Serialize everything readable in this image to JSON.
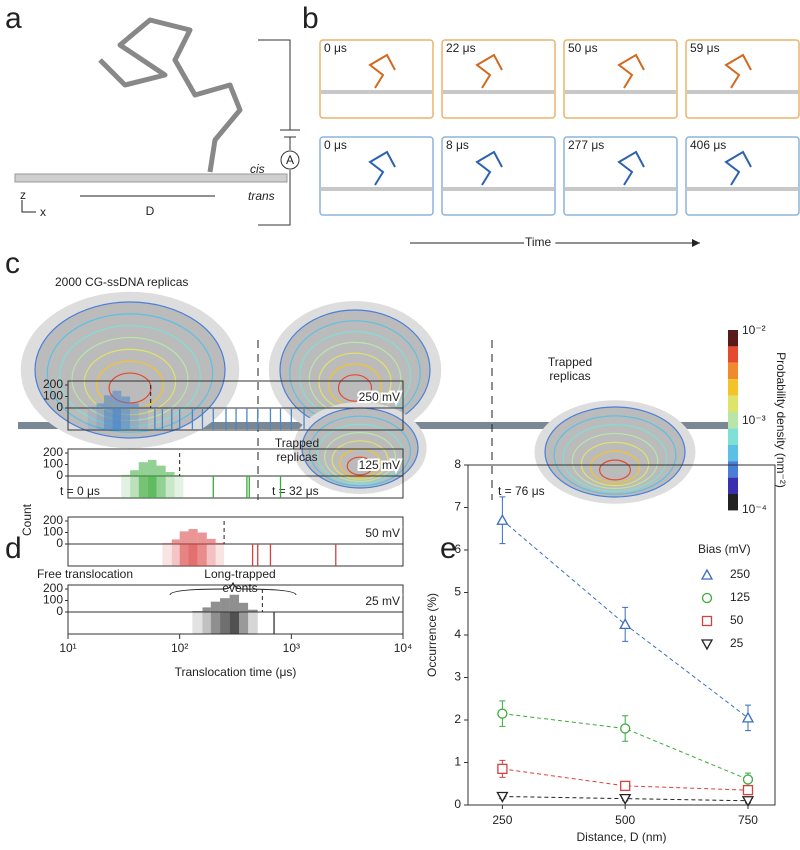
{
  "panel_labels": [
    "a",
    "b",
    "c",
    "d",
    "e"
  ],
  "panel_a": {
    "cis": "cis",
    "trans": "trans",
    "distance": "D",
    "ammeter": "A",
    "axis_z": "z",
    "axis_x": "x"
  },
  "panel_b": {
    "orange_times": [
      "0 μs",
      "22 μs",
      "50 μs",
      "59 μs"
    ],
    "blue_times": [
      "0 μs",
      "8 μs",
      "277 μs",
      "406 μs"
    ],
    "orange_color": "#e9b46c",
    "blue_color": "#8fb4d8",
    "axis": "Time"
  },
  "panel_c": {
    "title": "2000 CG-ssDNA replicas",
    "times": [
      "t = 0 μs",
      "t = 32 μs",
      "t = 76 μs"
    ],
    "annotations": [
      "Trapped replicas",
      "Trapped replicas"
    ],
    "colorbar": {
      "label": "Probability density (nm⁻²)",
      "ticks": [
        "10⁻²",
        "10⁻³",
        "10⁻⁴"
      ],
      "colors": [
        "#5a1a1a",
        "#e64a2e",
        "#f08a2c",
        "#f3c42a",
        "#dfe36a",
        "#b9e6a8",
        "#7fe0d6",
        "#5bc0e6",
        "#4a7fd8",
        "#3a2fb0",
        "#222222"
      ]
    }
  },
  "chart_data": [
    {
      "type": "histogram",
      "log_x": true,
      "xlim": [
        10,
        10000
      ],
      "xticks": [
        {
          "value": 10,
          "label": "10¹"
        },
        {
          "value": 100,
          "label": "10²"
        },
        {
          "value": 1000,
          "label": "10³"
        },
        {
          "value": 10000,
          "label": "10⁴"
        }
      ],
      "ylim": [
        0,
        200
      ],
      "yticks": [
        0,
        100,
        200
      ],
      "xlabel": "Translocation time (μs)",
      "ylabel": "Count",
      "annotations": [
        "Free translocation",
        "Long-trapped events"
      ],
      "series": [
        {
          "name": "250 mV",
          "color": "#4a86c8",
          "bins": [
            15,
            18,
            21,
            25,
            30,
            36,
            43,
            52
          ],
          "counts": [
            10,
            40,
            110,
            150,
            100,
            40,
            10
          ],
          "threshold": 55,
          "events": [
            60,
            70,
            85,
            100,
            130,
            160,
            200,
            260,
            320,
            400,
            500,
            650,
            800,
            1000,
            1300
          ]
        },
        {
          "name": "125 mV",
          "color": "#3aaa3a",
          "bins": [
            30,
            36,
            43,
            52,
            62,
            75,
            90,
            108
          ],
          "counts": [
            10,
            50,
            120,
            140,
            90,
            35,
            8
          ],
          "threshold": 100,
          "events": [
            200,
            400,
            420,
            800
          ]
        },
        {
          "name": "50 mV",
          "color": "#d84040",
          "bins": [
            70,
            85,
            100,
            120,
            145,
            175,
            210,
            250
          ],
          "counts": [
            8,
            40,
            110,
            130,
            100,
            45,
            10
          ],
          "threshold": 250,
          "events": [
            450,
            500,
            650,
            2500
          ]
        },
        {
          "name": "25 mV",
          "color": "#333333",
          "bins": [
            130,
            160,
            190,
            230,
            280,
            340,
            410,
            500
          ],
          "counts": [
            8,
            40,
            90,
            120,
            150,
            80,
            20
          ],
          "threshold": 550,
          "events": [
            700
          ]
        }
      ]
    },
    {
      "type": "scatter",
      "x": [
        250,
        500,
        750
      ],
      "xlim": [
        180,
        805
      ],
      "xticks": [
        250,
        500,
        750
      ],
      "ylim": [
        0,
        8
      ],
      "yticks": [
        0,
        1,
        2,
        3,
        4,
        5,
        6,
        7,
        8
      ],
      "xlabel": "Distance, D (nm)",
      "ylabel": "Occurrence (%)",
      "legend_title": "Bias (mV)",
      "series": [
        {
          "name": "250",
          "color": "#3a6ec0",
          "marker": "triangle-up",
          "values": [
            6.7,
            4.25,
            2.05
          ],
          "errors": [
            0.55,
            0.4,
            0.3
          ]
        },
        {
          "name": "125",
          "color": "#3aaa3a",
          "marker": "circle",
          "values": [
            2.15,
            1.8,
            0.6
          ],
          "errors": [
            0.3,
            0.3,
            0.15
          ]
        },
        {
          "name": "50",
          "color": "#d84040",
          "marker": "square",
          "values": [
            0.85,
            0.45,
            0.35
          ],
          "errors": [
            0.2,
            0.1,
            0.1
          ]
        },
        {
          "name": "25",
          "color": "#222222",
          "marker": "triangle-down",
          "values": [
            0.2,
            0.15,
            0.1
          ],
          "errors": [
            0.05,
            0.05,
            0.05
          ]
        }
      ]
    }
  ]
}
